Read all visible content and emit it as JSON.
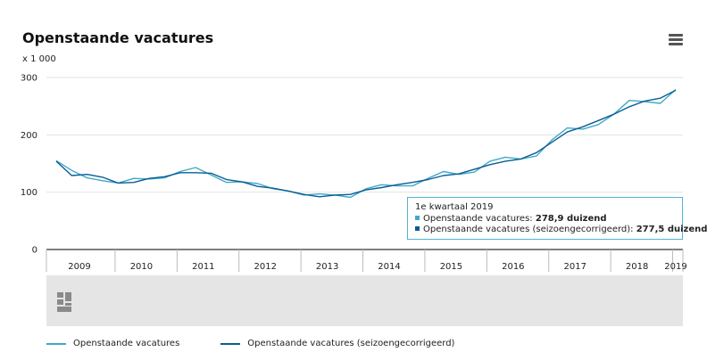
{
  "title": "Openstaande vacatures",
  "colors": {
    "series1": "#41a9c9",
    "series2": "#0a5d93",
    "grid": "#e2e2e2",
    "axis": "#333333",
    "band": "#e5e5e5"
  },
  "icons": {
    "menu": "hamburger-menu-icon",
    "logo": "cbs-logo-icon"
  },
  "tooltip": {
    "header": "1e kwartaal 2019",
    "rows": [
      {
        "label": "Openstaande vacatures",
        "value": "278,9 duizend"
      },
      {
        "label": "Openstaande vacatures (seizoengecorrigeerd)",
        "value": "277,5 duizend"
      }
    ]
  },
  "chart_data": {
    "type": "line",
    "ylabel": "x 1 000",
    "ylim": [
      0,
      300
    ],
    "yticks": [
      0,
      100,
      200,
      300
    ],
    "grid": true,
    "legend_position": "bottom-left",
    "year_labels": [
      "2009",
      "2010",
      "2011",
      "2012",
      "2013",
      "2014",
      "2015",
      "2016",
      "2017",
      "2018",
      "2019"
    ],
    "x": [
      "2009K1",
      "2009K2",
      "2009K3",
      "2009K4",
      "2010K1",
      "2010K2",
      "2010K3",
      "2010K4",
      "2011K1",
      "2011K2",
      "2011K3",
      "2011K4",
      "2012K1",
      "2012K2",
      "2012K3",
      "2012K4",
      "2013K1",
      "2013K2",
      "2013K3",
      "2013K4",
      "2014K1",
      "2014K2",
      "2014K3",
      "2014K4",
      "2015K1",
      "2015K2",
      "2015K3",
      "2015K4",
      "2016K1",
      "2016K2",
      "2016K3",
      "2016K4",
      "2017K1",
      "2017K2",
      "2017K3",
      "2017K4",
      "2018K1",
      "2018K2",
      "2018K3",
      "2018K4",
      "2019K1"
    ],
    "series": [
      {
        "name": "Openstaande vacatures",
        "values": [
          155,
          138,
          125,
          120,
          116,
          124,
          123,
          125,
          136,
          143,
          130,
          117,
          118,
          115,
          106,
          102,
          95,
          97,
          95,
          91,
          106,
          113,
          111,
          111,
          124,
          136,
          131,
          135,
          154,
          161,
          158,
          163,
          191,
          212,
          210,
          218,
          236,
          260,
          258,
          255,
          279
        ]
      },
      {
        "name": "Openstaande vacatures (seizoengecorrigeerd)",
        "values": [
          154,
          129,
          131,
          126,
          116,
          117,
          124,
          127,
          134,
          134,
          133,
          122,
          118,
          110,
          107,
          102,
          96,
          92,
          95,
          96,
          104,
          108,
          113,
          117,
          122,
          129,
          132,
          140,
          148,
          154,
          158,
          169,
          187,
          205,
          214,
          225,
          236,
          249,
          259,
          264,
          278
        ]
      }
    ]
  }
}
